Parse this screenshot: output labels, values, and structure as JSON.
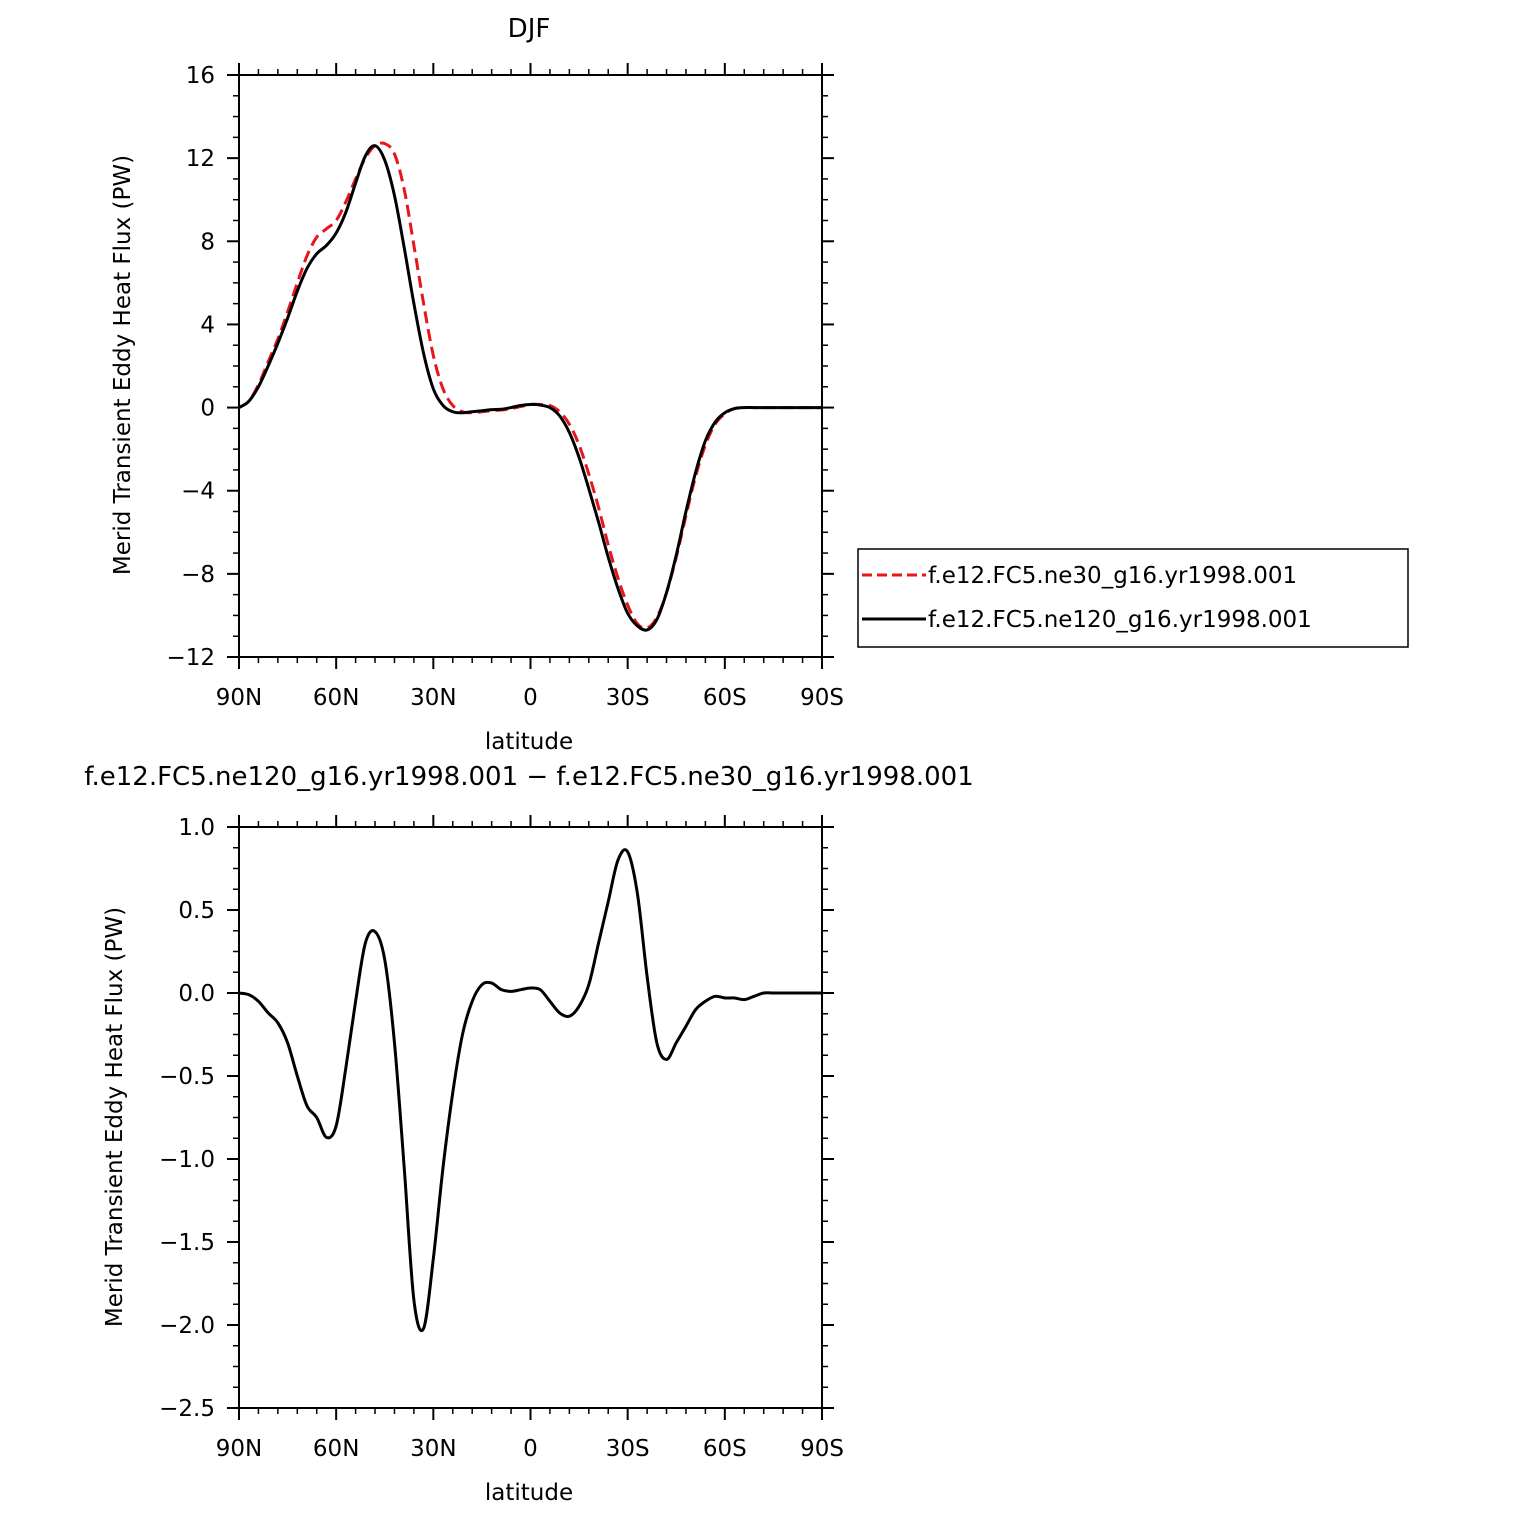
{
  "chart_data": [
    {
      "type": "line",
      "title": "DJF",
      "xlabel": "latitude",
      "ylabel": "Merid Transient Eddy Heat Flux (PW)",
      "x_tick_labels": [
        "90N",
        "60N",
        "30N",
        "0",
        "30S",
        "60S",
        "90S"
      ],
      "y_tick_labels": [
        "16",
        "12",
        "8",
        "4",
        "0",
        "−4",
        "−8",
        "−12"
      ],
      "xlim": [
        -90,
        90
      ],
      "ylim": [
        -12,
        16
      ],
      "legend": "right",
      "series": [
        {
          "name": "f.e12.FC5.ne30_g16.yr1998.001",
          "color": "#e8161b",
          "dash": "dashed",
          "x": [
            -90,
            -87,
            -84,
            -81,
            -78,
            -75,
            -72,
            -69,
            -66,
            -63,
            -60,
            -57,
            -54,
            -51,
            -48,
            -45,
            -42,
            -39,
            -36,
            -33,
            -30,
            -27,
            -24,
            -21,
            -18,
            -15,
            -12,
            -9,
            -6,
            -3,
            0,
            3,
            6,
            9,
            12,
            15,
            18,
            21,
            24,
            27,
            30,
            33,
            36,
            39,
            42,
            45,
            48,
            51,
            54,
            57,
            60,
            63,
            66,
            69,
            72,
            75,
            78,
            81,
            84,
            87,
            90
          ],
          "y": [
            0,
            0.3,
            1.1,
            2.2,
            3.3,
            4.6,
            6.0,
            7.3,
            8.2,
            8.6,
            9.0,
            9.9,
            11.0,
            12.0,
            12.6,
            12.7,
            12.2,
            10.5,
            7.8,
            5.0,
            2.5,
            0.9,
            0.1,
            -0.2,
            -0.25,
            -0.2,
            -0.15,
            -0.12,
            -0.05,
            0.05,
            0.15,
            0.15,
            0.1,
            -0.2,
            -0.8,
            -1.8,
            -3.2,
            -4.8,
            -6.6,
            -8.2,
            -9.5,
            -10.4,
            -10.6,
            -10.1,
            -8.9,
            -7.2,
            -5.2,
            -3.3,
            -1.8,
            -0.8,
            -0.3,
            -0.05,
            0,
            0,
            0,
            0,
            0,
            0,
            0,
            0,
            0
          ]
        },
        {
          "name": "f.e12.FC5.ne120_g16.yr1998.001",
          "color": "#000000",
          "dash": "solid",
          "x": [
            -90,
            -87,
            -84,
            -81,
            -78,
            -75,
            -72,
            -69,
            -66,
            -63,
            -60,
            -57,
            -54,
            -51,
            -48,
            -45,
            -42,
            -39,
            -36,
            -33,
            -30,
            -27,
            -24,
            -21,
            -18,
            -15,
            -12,
            -9,
            -6,
            -3,
            0,
            3,
            6,
            9,
            12,
            15,
            18,
            21,
            24,
            27,
            30,
            33,
            36,
            39,
            42,
            45,
            48,
            51,
            54,
            57,
            60,
            63,
            66,
            69,
            72,
            75,
            78,
            81,
            84,
            87,
            90
          ],
          "y": [
            0,
            0.3,
            1.0,
            2.0,
            3.1,
            4.3,
            5.6,
            6.7,
            7.4,
            7.8,
            8.4,
            9.4,
            10.8,
            12.1,
            12.6,
            11.9,
            10.2,
            7.7,
            5.0,
            2.6,
            0.9,
            0.1,
            -0.2,
            -0.25,
            -0.2,
            -0.15,
            -0.1,
            -0.08,
            0.0,
            0.1,
            0.15,
            0.12,
            0.0,
            -0.4,
            -1.2,
            -2.4,
            -3.9,
            -5.5,
            -7.2,
            -8.7,
            -9.9,
            -10.5,
            -10.7,
            -10.2,
            -8.9,
            -7.1,
            -5.0,
            -3.1,
            -1.6,
            -0.7,
            -0.25,
            -0.05,
            0,
            0,
            0,
            0,
            0,
            0,
            0,
            0,
            0
          ]
        }
      ]
    },
    {
      "type": "line",
      "title": "f.e12.FC5.ne120_g16.yr1998.001 − f.e12.FC5.ne30_g16.yr1998.001",
      "xlabel": "latitude",
      "ylabel": "Merid Transient Eddy Heat Flux (PW)",
      "x_tick_labels": [
        "90N",
        "60N",
        "30N",
        "0",
        "30S",
        "60S",
        "90S"
      ],
      "y_tick_labels": [
        "1.0",
        "0.5",
        "0.0",
        "−0.5",
        "−1.0",
        "−1.5",
        "−2.0",
        "−2.5"
      ],
      "xlim": [
        -90,
        90
      ],
      "ylim": [
        -2.5,
        1.0
      ],
      "series": [
        {
          "color": "#000000",
          "dash": "solid",
          "x": [
            -90,
            -87,
            -84,
            -81,
            -78,
            -75,
            -72,
            -69,
            -66,
            -63,
            -60,
            -57,
            -54,
            -51,
            -48,
            -45,
            -42,
            -39,
            -36,
            -33,
            -30,
            -27,
            -24,
            -21,
            -18,
            -15,
            -12,
            -9,
            -6,
            -3,
            0,
            3,
            6,
            9,
            12,
            15,
            18,
            21,
            24,
            27,
            30,
            33,
            36,
            39,
            42,
            45,
            48,
            51,
            54,
            57,
            60,
            63,
            66,
            69,
            72,
            75,
            78,
            81,
            84,
            87,
            90
          ],
          "y": [
            0,
            -0.01,
            -0.05,
            -0.12,
            -0.18,
            -0.3,
            -0.5,
            -0.68,
            -0.75,
            -0.87,
            -0.8,
            -0.45,
            -0.05,
            0.3,
            0.37,
            0.2,
            -0.3,
            -1.05,
            -1.85,
            -2.02,
            -1.6,
            -1.05,
            -0.6,
            -0.25,
            -0.05,
            0.05,
            0.06,
            0.02,
            0.01,
            0.02,
            0.03,
            0.02,
            -0.05,
            -0.12,
            -0.14,
            -0.08,
            0.05,
            0.3,
            0.55,
            0.8,
            0.85,
            0.6,
            0.1,
            -0.3,
            -0.4,
            -0.3,
            -0.2,
            -0.1,
            -0.05,
            -0.02,
            -0.03,
            -0.03,
            -0.04,
            -0.02,
            0,
            0,
            0,
            0,
            0,
            0,
            0
          ]
        }
      ]
    }
  ]
}
